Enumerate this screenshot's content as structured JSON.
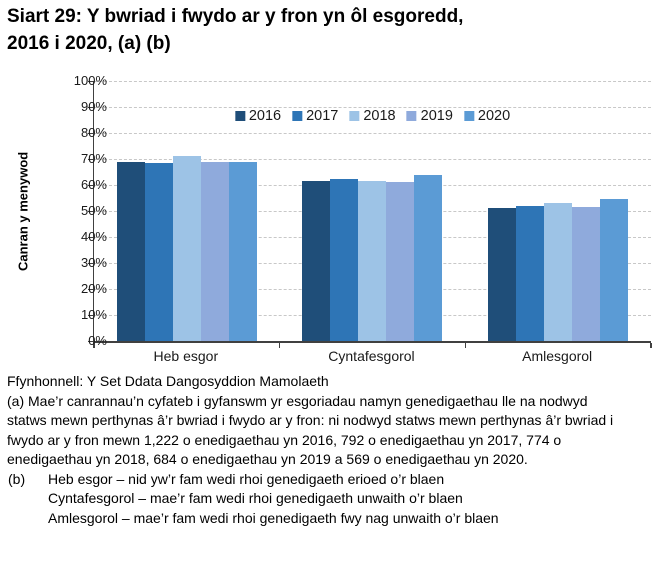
{
  "title": {
    "line1": "Siart 29: Y bwriad i fwydo ar y fron yn ôl esgoredd,",
    "line2": "2016 i 2020, (a) (b)"
  },
  "chart_data": {
    "type": "bar",
    "title": "Siart 29: Y bwriad i fwydo ar y fron yn ôl esgoredd, 2016 i 2020, (a) (b)",
    "xlabel": "",
    "ylabel": "Canran y menywod",
    "ylim": [
      0,
      100
    ],
    "ytick_step": 10,
    "ytick_suffix": "%",
    "grid": "horizontal-dashed",
    "legend_position": "top-center-inside",
    "categories": [
      "Heb esgor",
      "Cyntafesgorol",
      "Amlesgorol"
    ],
    "series": [
      {
        "name": "2016",
        "color": "#1F4E79",
        "values": [
          69,
          61.5,
          51
        ]
      },
      {
        "name": "2017",
        "color": "#2E75B6",
        "values": [
          68.5,
          62.5,
          52
        ]
      },
      {
        "name": "2018",
        "color": "#9DC3E6",
        "values": [
          71,
          61.5,
          53
        ]
      },
      {
        "name": "2019",
        "color": "#8FAADC",
        "values": [
          69,
          61,
          51.5
        ]
      },
      {
        "name": "2020",
        "color": "#5B9BD5",
        "values": [
          69,
          64,
          54.5
        ]
      }
    ]
  },
  "footnotes": {
    "source": "Ffynhonnell: Y Set Ddata Dangosyddion Mamolaeth",
    "note_a": "(a) Mae’r canrannau’n cyfateb i gyfanswm yr esgoriadau namyn genedigaethau lle na nodwyd statws mewn perthynas â’r bwriad i fwydo ar y fron: ni nodwyd statws mewn perthynas â’r bwriad i fwydo ar y fron mewn 1,222 o enedigaethau yn 2016, 792 o enedigaethau yn 2017, 774 o enedigaethau yn 2018, 684 o enedigaethau yn 2019 a 569 o enedigaethau yn 2020.",
    "note_b_label": "(b)",
    "note_b_items": [
      "Heb esgor – nid yw’r fam wedi rhoi genedigaeth erioed o’r blaen",
      "Cyntafesgorol – mae’r fam wedi rhoi genedigaeth unwaith o’r blaen",
      "Amlesgorol – mae’r fam wedi rhoi genedigaeth fwy nag unwaith o’r blaen"
    ]
  }
}
